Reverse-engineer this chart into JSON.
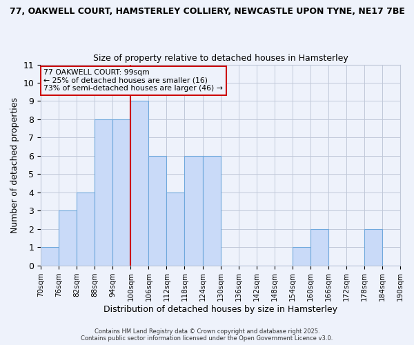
{
  "title_line1": "77, OAKWELL COURT, HAMSTERLEY COLLIERY, NEWCASTLE UPON TYNE, NE17 7BE",
  "title_line2": "Size of property relative to detached houses in Hamsterley",
  "xlabel": "Distribution of detached houses by size in Hamsterley",
  "ylabel": "Number of detached properties",
  "bin_labels": [
    "70sqm",
    "76sqm",
    "82sqm",
    "88sqm",
    "94sqm",
    "100sqm",
    "106sqm",
    "112sqm",
    "118sqm",
    "124sqm",
    "130sqm",
    "136sqm",
    "142sqm",
    "148sqm",
    "154sqm",
    "160sqm",
    "166sqm",
    "172sqm",
    "178sqm",
    "184sqm",
    "190sqm"
  ],
  "bin_edges": [
    70,
    76,
    82,
    88,
    94,
    100,
    106,
    112,
    118,
    124,
    130,
    136,
    142,
    148,
    154,
    160,
    166,
    172,
    178,
    184,
    190
  ],
  "counts": [
    1,
    3,
    4,
    8,
    8,
    9,
    6,
    4,
    6,
    6,
    0,
    0,
    0,
    0,
    1,
    2,
    0,
    0,
    2,
    0
  ],
  "bar_color": "#c9daf8",
  "bar_edge_color": "#6fa8dc",
  "grid_color": "#c0c8d8",
  "ref_line_x": 100,
  "ref_line_color": "#cc0000",
  "annotation_box_color": "#cc0000",
  "annotation_text_line1": "77 OAKWELL COURT: 99sqm",
  "annotation_text_line2": "← 25% of detached houses are smaller (16)",
  "annotation_text_line3": "73% of semi-detached houses are larger (46) →",
  "ylim": [
    0,
    11
  ],
  "yticks": [
    0,
    1,
    2,
    3,
    4,
    5,
    6,
    7,
    8,
    9,
    10,
    11
  ],
  "footer_line1": "Contains HM Land Registry data © Crown copyright and database right 2025.",
  "footer_line2": "Contains public sector information licensed under the Open Government Licence v3.0.",
  "background_color": "#eef2fb"
}
